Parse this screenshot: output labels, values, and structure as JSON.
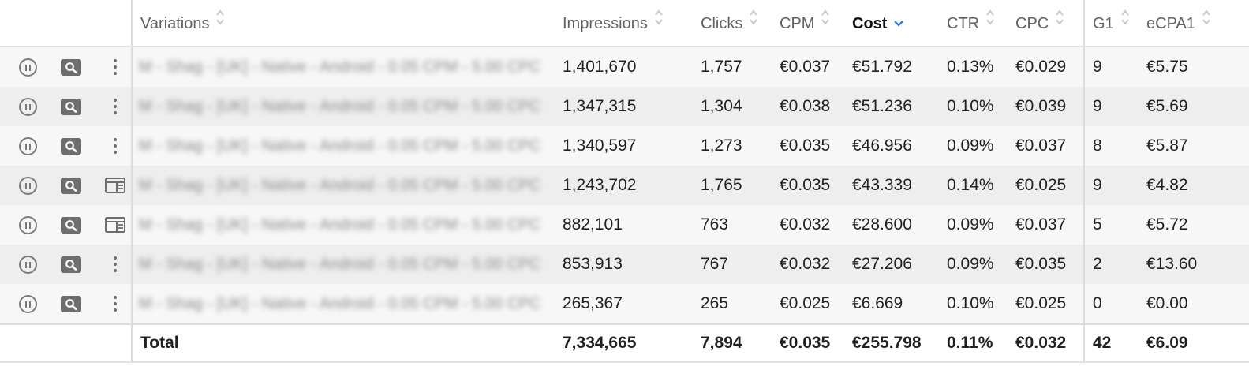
{
  "table": {
    "columns": [
      {
        "key": "variations",
        "label": "Variations",
        "sort": "both"
      },
      {
        "key": "impressions",
        "label": "Impressions",
        "sort": "both"
      },
      {
        "key": "clicks",
        "label": "Clicks",
        "sort": "both"
      },
      {
        "key": "cpm",
        "label": "CPM",
        "sort": "both"
      },
      {
        "key": "cost",
        "label": "Cost",
        "sort": "desc",
        "active": true
      },
      {
        "key": "ctr",
        "label": "CTR",
        "sort": "both"
      },
      {
        "key": "cpc",
        "label": "CPC",
        "sort": "both"
      },
      {
        "key": "g1",
        "label": "G1",
        "sort": "both"
      },
      {
        "key": "ecpa1",
        "label": "eCPA1",
        "sort": "both"
      }
    ],
    "rows": [
      {
        "actions": [
          "pause-icon",
          "search-icon",
          "more-vert-icon"
        ],
        "variation": "M - Shag - [UK] - Native - Android - 0.05 CPM - 5.00 CPC",
        "impressions": "1,401,670",
        "clicks": "1,757",
        "cpm": "€0.037",
        "cost": "€51.792",
        "ctr": "0.13%",
        "cpc": "€0.029",
        "g1": "9",
        "ecpa1": "€5.75"
      },
      {
        "actions": [
          "pause-icon",
          "search-icon",
          "more-vert-icon"
        ],
        "variation": "M - Shag - [UK] - Native - Android - 0.05 CPM - 5.00 CPC",
        "impressions": "1,347,315",
        "clicks": "1,304",
        "cpm": "€0.038",
        "cost": "€51.236",
        "ctr": "0.10%",
        "cpc": "€0.039",
        "g1": "9",
        "ecpa1": "€5.69"
      },
      {
        "actions": [
          "pause-icon",
          "search-icon",
          "more-vert-icon"
        ],
        "variation": "M - Shag - [UK] - Native - Android - 0.05 CPM - 5.00 CPC",
        "impressions": "1,340,597",
        "clicks": "1,273",
        "cpm": "€0.035",
        "cost": "€46.956",
        "ctr": "0.09%",
        "cpc": "€0.037",
        "g1": "8",
        "ecpa1": "€5.87"
      },
      {
        "actions": [
          "pause-icon",
          "search-icon",
          "layout-icon"
        ],
        "variation": "M - Shag - [UK] - Native - Android - 0.05 CPM - 5.00 CPC",
        "impressions": "1,243,702",
        "clicks": "1,765",
        "cpm": "€0.035",
        "cost": "€43.339",
        "ctr": "0.14%",
        "cpc": "€0.025",
        "g1": "9",
        "ecpa1": "€4.82"
      },
      {
        "actions": [
          "pause-icon",
          "search-icon",
          "layout-icon"
        ],
        "variation": "M - Shag - [UK] - Native - Android - 0.05 CPM - 5.00 CPC",
        "impressions": "882,101",
        "clicks": "763",
        "cpm": "€0.032",
        "cost": "€28.600",
        "ctr": "0.09%",
        "cpc": "€0.037",
        "g1": "5",
        "ecpa1": "€5.72"
      },
      {
        "actions": [
          "pause-icon",
          "search-icon",
          "more-vert-icon"
        ],
        "variation": "M - Shag - [UK] - Native - Android - 0.05 CPM - 5.00 CPC",
        "impressions": "853,913",
        "clicks": "767",
        "cpm": "€0.032",
        "cost": "€27.206",
        "ctr": "0.09%",
        "cpc": "€0.035",
        "g1": "2",
        "ecpa1": "€13.60"
      },
      {
        "actions": [
          "pause-icon",
          "search-icon",
          "more-vert-icon"
        ],
        "variation": "M - Shag - [UK] - Native - Android - 0.05 CPM - 5.00 CPC",
        "impressions": "265,367",
        "clicks": "265",
        "cpm": "€0.025",
        "cost": "€6.669",
        "ctr": "0.10%",
        "cpc": "€0.025",
        "g1": "0",
        "ecpa1": "€0.00"
      }
    ],
    "total": {
      "label": "Total",
      "impressions": "7,334,665",
      "clicks": "7,894",
      "cpm": "€0.035",
      "cost": "€255.798",
      "ctr": "0.11%",
      "cpc": "€0.032",
      "g1": "42",
      "ecpa1": "€6.09"
    }
  },
  "colors": {
    "row_odd": "#f7f7f7",
    "row_even": "#eeeeee",
    "sort_active": "#1a73e8",
    "sort_idle": "#c8c8c8"
  }
}
